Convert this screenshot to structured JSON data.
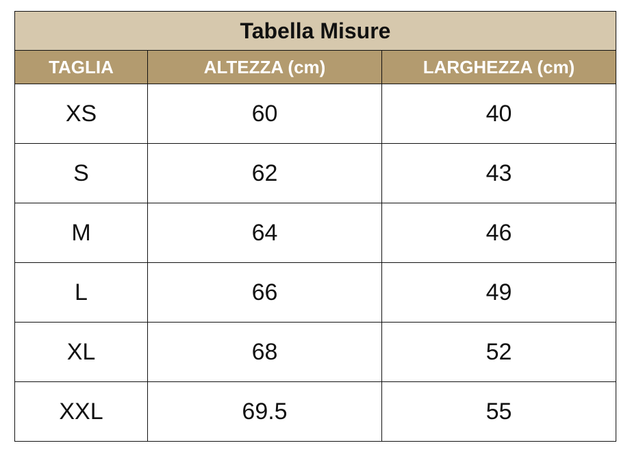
{
  "title": "Tabella Misure",
  "colors": {
    "title_bg": "#d6c8ad",
    "header_bg": "#b39b6f",
    "border": "#111111"
  },
  "headers": [
    "TAGLIA",
    "ALTEZZA (cm)",
    "LARGHEZZA (cm)"
  ],
  "rows": [
    [
      "XS",
      "60",
      "40"
    ],
    [
      "S",
      "62",
      "43"
    ],
    [
      "M",
      "64",
      "46"
    ],
    [
      "L",
      "66",
      "49"
    ],
    [
      "XL",
      "68",
      "52"
    ],
    [
      "XXL",
      "69.5",
      "55"
    ]
  ]
}
